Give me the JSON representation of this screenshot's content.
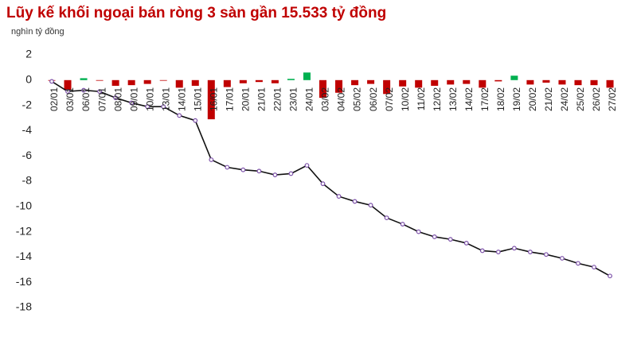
{
  "chart_data": {
    "type": "bar_line",
    "title": "Lũy kế khối ngoại bán ròng 3 sàn gần 15.533 tỷ đồng",
    "subtitle": "nghìn tỷ đồng",
    "categories": [
      "02/01",
      "03/01",
      "06/01",
      "07/01",
      "08/01",
      "09/01",
      "10/01",
      "13/01",
      "14/01",
      "15/01",
      "16/01",
      "17/01",
      "20/01",
      "21/01",
      "22/01",
      "23/01",
      "24/01",
      "03/02",
      "04/02",
      "05/02",
      "06/02",
      "07/02",
      "10/02",
      "11/02",
      "12/02",
      "13/02",
      "14/02",
      "17/02",
      "18/02",
      "19/02",
      "20/02",
      "21/02",
      "24/02",
      "25/02",
      "26/02",
      "27/02"
    ],
    "series": [
      {
        "kind": "bar",
        "positive_color": "#00b050",
        "negative_color": "#c00000",
        "values": [
          -0.05,
          -0.8,
          0.15,
          -0.05,
          -0.45,
          -0.4,
          -0.3,
          -0.05,
          -0.6,
          -0.45,
          -3.1,
          -0.55,
          -0.25,
          -0.15,
          -0.25,
          0.1,
          0.6,
          -1.4,
          -1.0,
          -0.4,
          -0.3,
          -1.1,
          -0.5,
          -0.6,
          -0.45,
          -0.35,
          -0.3,
          -0.6,
          -0.1,
          0.35,
          -0.35,
          -0.2,
          -0.35,
          -0.4,
          -0.4,
          -0.6
        ]
      },
      {
        "kind": "line",
        "color": "#111111",
        "marker_color": "#7b4fa8",
        "values": [
          -0.1,
          -0.9,
          -0.8,
          -0.9,
          -1.4,
          -1.8,
          -2.1,
          -2.1,
          -2.8,
          -3.2,
          -6.3,
          -6.9,
          -7.1,
          -7.2,
          -7.5,
          -7.4,
          -6.75,
          -8.2,
          -9.2,
          -9.6,
          -9.9,
          -10.9,
          -11.4,
          -12.0,
          -12.4,
          -12.6,
          -12.9,
          -13.5,
          -13.6,
          -13.3,
          -13.6,
          -13.8,
          -14.1,
          -14.5,
          -14.8,
          -15.5
        ]
      }
    ],
    "ylim": [
      -18,
      2
    ],
    "yticks": [
      2,
      0,
      -2,
      -4,
      -6,
      -8,
      -10,
      -12,
      -14,
      -16,
      -18
    ],
    "title_color": "#c00000"
  }
}
